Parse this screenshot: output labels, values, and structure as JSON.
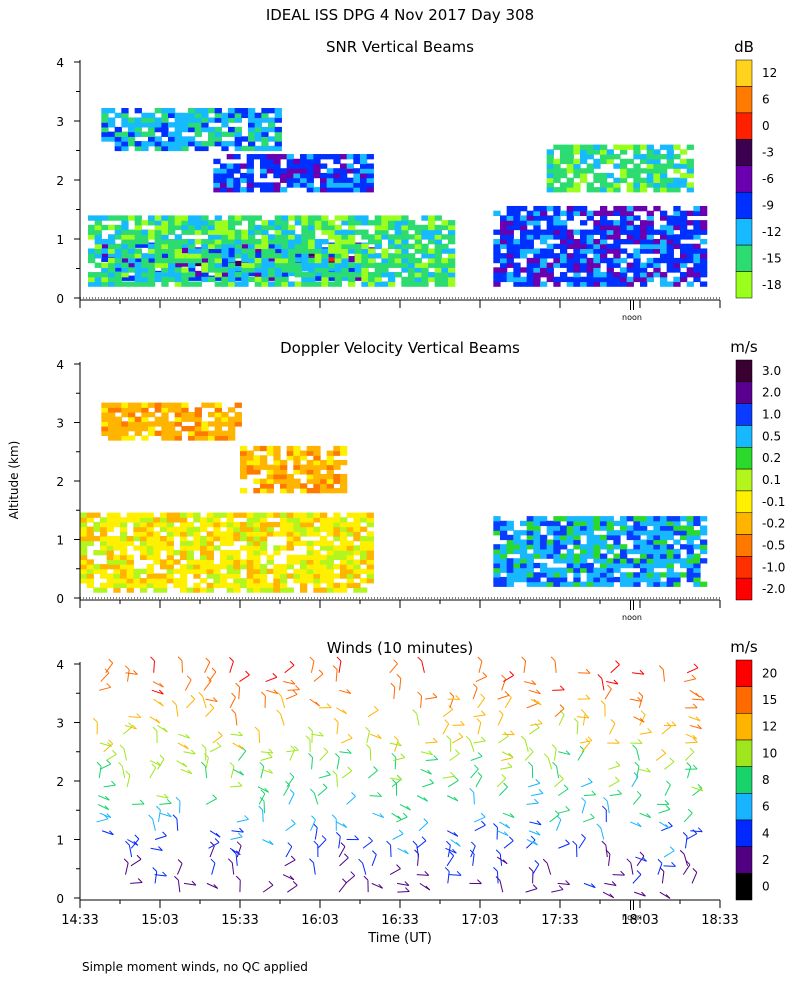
{
  "figure": {
    "title": "IDEAL ISS DPG    4 Nov 2017 Day 308",
    "footnote": "Simple moment winds, no QC applied",
    "shared_ylabel": "Altitude (km)",
    "xlabel": "Time (UT)",
    "x_tick_labels": [
      "14:33",
      "15:03",
      "15:33",
      "16:03",
      "16:33",
      "17:03",
      "17:33",
      "18:03",
      "18:33"
    ],
    "noon_label": "noon"
  },
  "chart_data": [
    {
      "type": "heatmap",
      "title": "SNR Vertical Beams",
      "xlabel": "",
      "ylabel": "Altitude (km)",
      "y_ticks": [
        0,
        1,
        2,
        3,
        4
      ],
      "ylim": [
        0,
        4
      ],
      "xlim_minutes_after_1433": [
        0,
        240
      ],
      "colorbar": {
        "unit": "dB",
        "labels": [
          "12",
          "6",
          "0",
          "-3",
          "-6",
          "-9",
          "-12",
          "-15",
          "-18"
        ],
        "colors": [
          "#ffd21e",
          "#ff7a00",
          "#ff2000",
          "#3c0050",
          "#6a00b0",
          "#0030ff",
          "#17b9ff",
          "#2cdc70",
          "#9bff1e"
        ]
      },
      "layers": [
        {
          "t0": 8,
          "t1": 110,
          "bottom": 0.55,
          "top": 0.75,
          "value": -3
        },
        {
          "t0": 8,
          "t1": 110,
          "bottom": 0.3,
          "top": 0.9,
          "value": -9
        },
        {
          "t0": 3,
          "t1": 140,
          "bottom": 0.2,
          "top": 1.4,
          "value": -15
        },
        {
          "t0": 8,
          "t1": 75,
          "bottom": 2.5,
          "top": 3.2,
          "value": -12
        },
        {
          "t0": 50,
          "t1": 110,
          "bottom": 1.8,
          "top": 2.4,
          "value": -9
        },
        {
          "t0": 155,
          "t1": 235,
          "bottom": 0.2,
          "top": 1.5,
          "value": -9
        },
        {
          "t0": 175,
          "t1": 230,
          "bottom": 1.8,
          "top": 2.6,
          "value": -15
        }
      ]
    },
    {
      "type": "heatmap",
      "title": "Doppler Velocity Vertical Beams",
      "xlabel": "",
      "ylabel": "Altitude (km)",
      "y_ticks": [
        0,
        1,
        2,
        3,
        4
      ],
      "ylim": [
        0,
        4
      ],
      "xlim_minutes_after_1433": [
        0,
        240
      ],
      "colorbar": {
        "unit": "m/s",
        "labels": [
          "3.0",
          "2.0",
          "1.0",
          "0.5",
          "0.2",
          "0.1",
          "-0.1",
          "-0.2",
          "-0.5",
          "-1.0",
          "-2.0"
        ],
        "colors": [
          "#3a0030",
          "#5a0090",
          "#0a3cff",
          "#18b8ff",
          "#2bd92b",
          "#b4f51e",
          "#fff000",
          "#ffb400",
          "#ff7800",
          "#ff3000",
          "#ff0000"
        ]
      },
      "layers": [
        {
          "t0": 0,
          "t1": 110,
          "bottom": 0.1,
          "top": 1.4,
          "value": -0.1
        },
        {
          "t0": 8,
          "t1": 60,
          "bottom": 2.7,
          "top": 3.3,
          "value": -0.2
        },
        {
          "t0": 60,
          "t1": 100,
          "bottom": 1.8,
          "top": 2.6,
          "value": -0.2
        },
        {
          "t0": 155,
          "t1": 235,
          "bottom": 0.2,
          "top": 1.4,
          "value": 0.5
        }
      ]
    },
    {
      "type": "scatter",
      "title": "Winds (10 minutes)",
      "xlabel": "Time (UT)",
      "ylabel": "Altitude (km)",
      "y_ticks": [
        0,
        1,
        2,
        3,
        4
      ],
      "ylim": [
        0,
        4
      ],
      "xlim_minutes_after_1433": [
        0,
        240
      ],
      "colorbar": {
        "unit": "m/s",
        "labels": [
          "20",
          "15",
          "12",
          "10",
          "8",
          "6",
          "4",
          "2",
          "0"
        ],
        "colors": [
          "#ff0000",
          "#ff6a00",
          "#ffb400",
          "#a0e61e",
          "#17d36a",
          "#18b4ff",
          "#0028ff",
          "#500080",
          "#000000"
        ]
      },
      "series": [
        {
          "name": "wind barbs",
          "times_min": [
            8,
            18,
            28,
            38,
            48,
            58,
            68,
            78,
            88,
            98,
            108,
            118,
            128,
            138,
            148,
            158,
            168,
            178,
            188,
            198,
            208,
            218,
            228
          ],
          "altitude_range_km": [
            0.1,
            3.9
          ]
        }
      ]
    }
  ]
}
